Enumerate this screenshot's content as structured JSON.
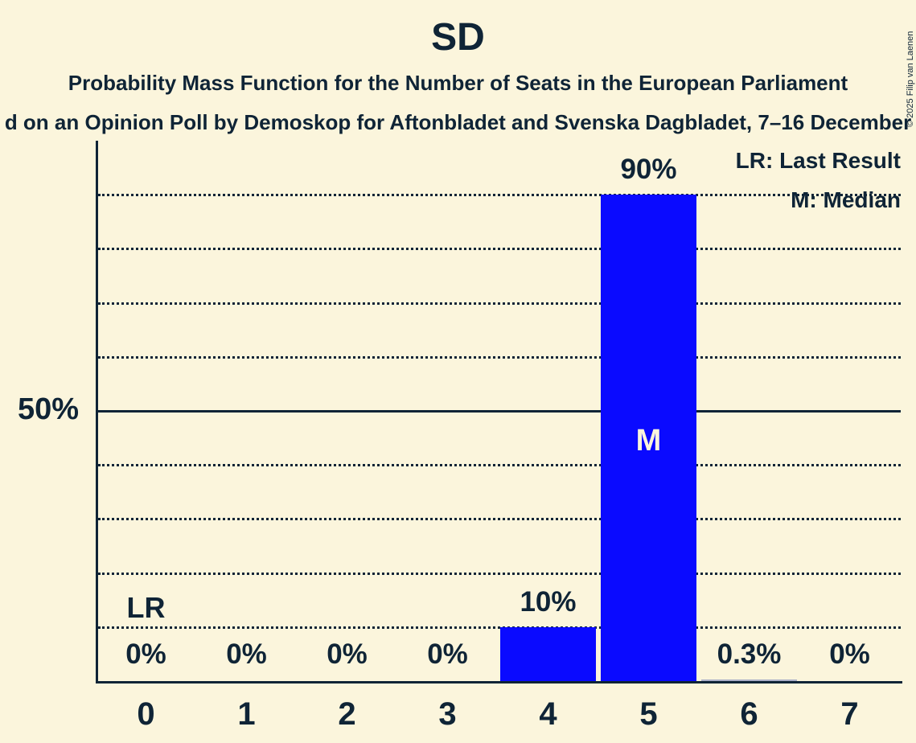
{
  "chart_data": {
    "type": "bar",
    "title": "SD",
    "subtitle": "Probability Mass Function for the Number of Seats in the European Parliament",
    "subtitle2": "d on an Opinion Poll by Demoskop for Aftonbladet and Svenska Dagbladet, 7–16 December",
    "categories": [
      "0",
      "1",
      "2",
      "3",
      "4",
      "5",
      "6",
      "7"
    ],
    "values": [
      0,
      0,
      0,
      0,
      10,
      90,
      0.3,
      0
    ],
    "value_labels": [
      "0%",
      "0%",
      "0%",
      "0%",
      "10%",
      "90%",
      "0.3%",
      "0%"
    ],
    "xlabel": "",
    "ylabel": "",
    "y_axis_tick": "50%",
    "ylim": [
      0,
      100
    ],
    "gridline_interval_percent": 10,
    "grid": "dotted horizontal, solid line at 50%",
    "legend_position": "top-right",
    "legend": [
      "LR: Last Result",
      "M: Median"
    ],
    "median_marker": "M",
    "median_seat": "5",
    "last_result_marker": "LR",
    "last_result_seat": "0",
    "copyright": "© 2025 Filip van Laenen"
  },
  "colors": {
    "background": "#fbf5dc",
    "ink": "#0f2436",
    "bar": "#0a0aff",
    "thin_bar": "#abb0c8",
    "median_text": "#fbf5dc"
  }
}
